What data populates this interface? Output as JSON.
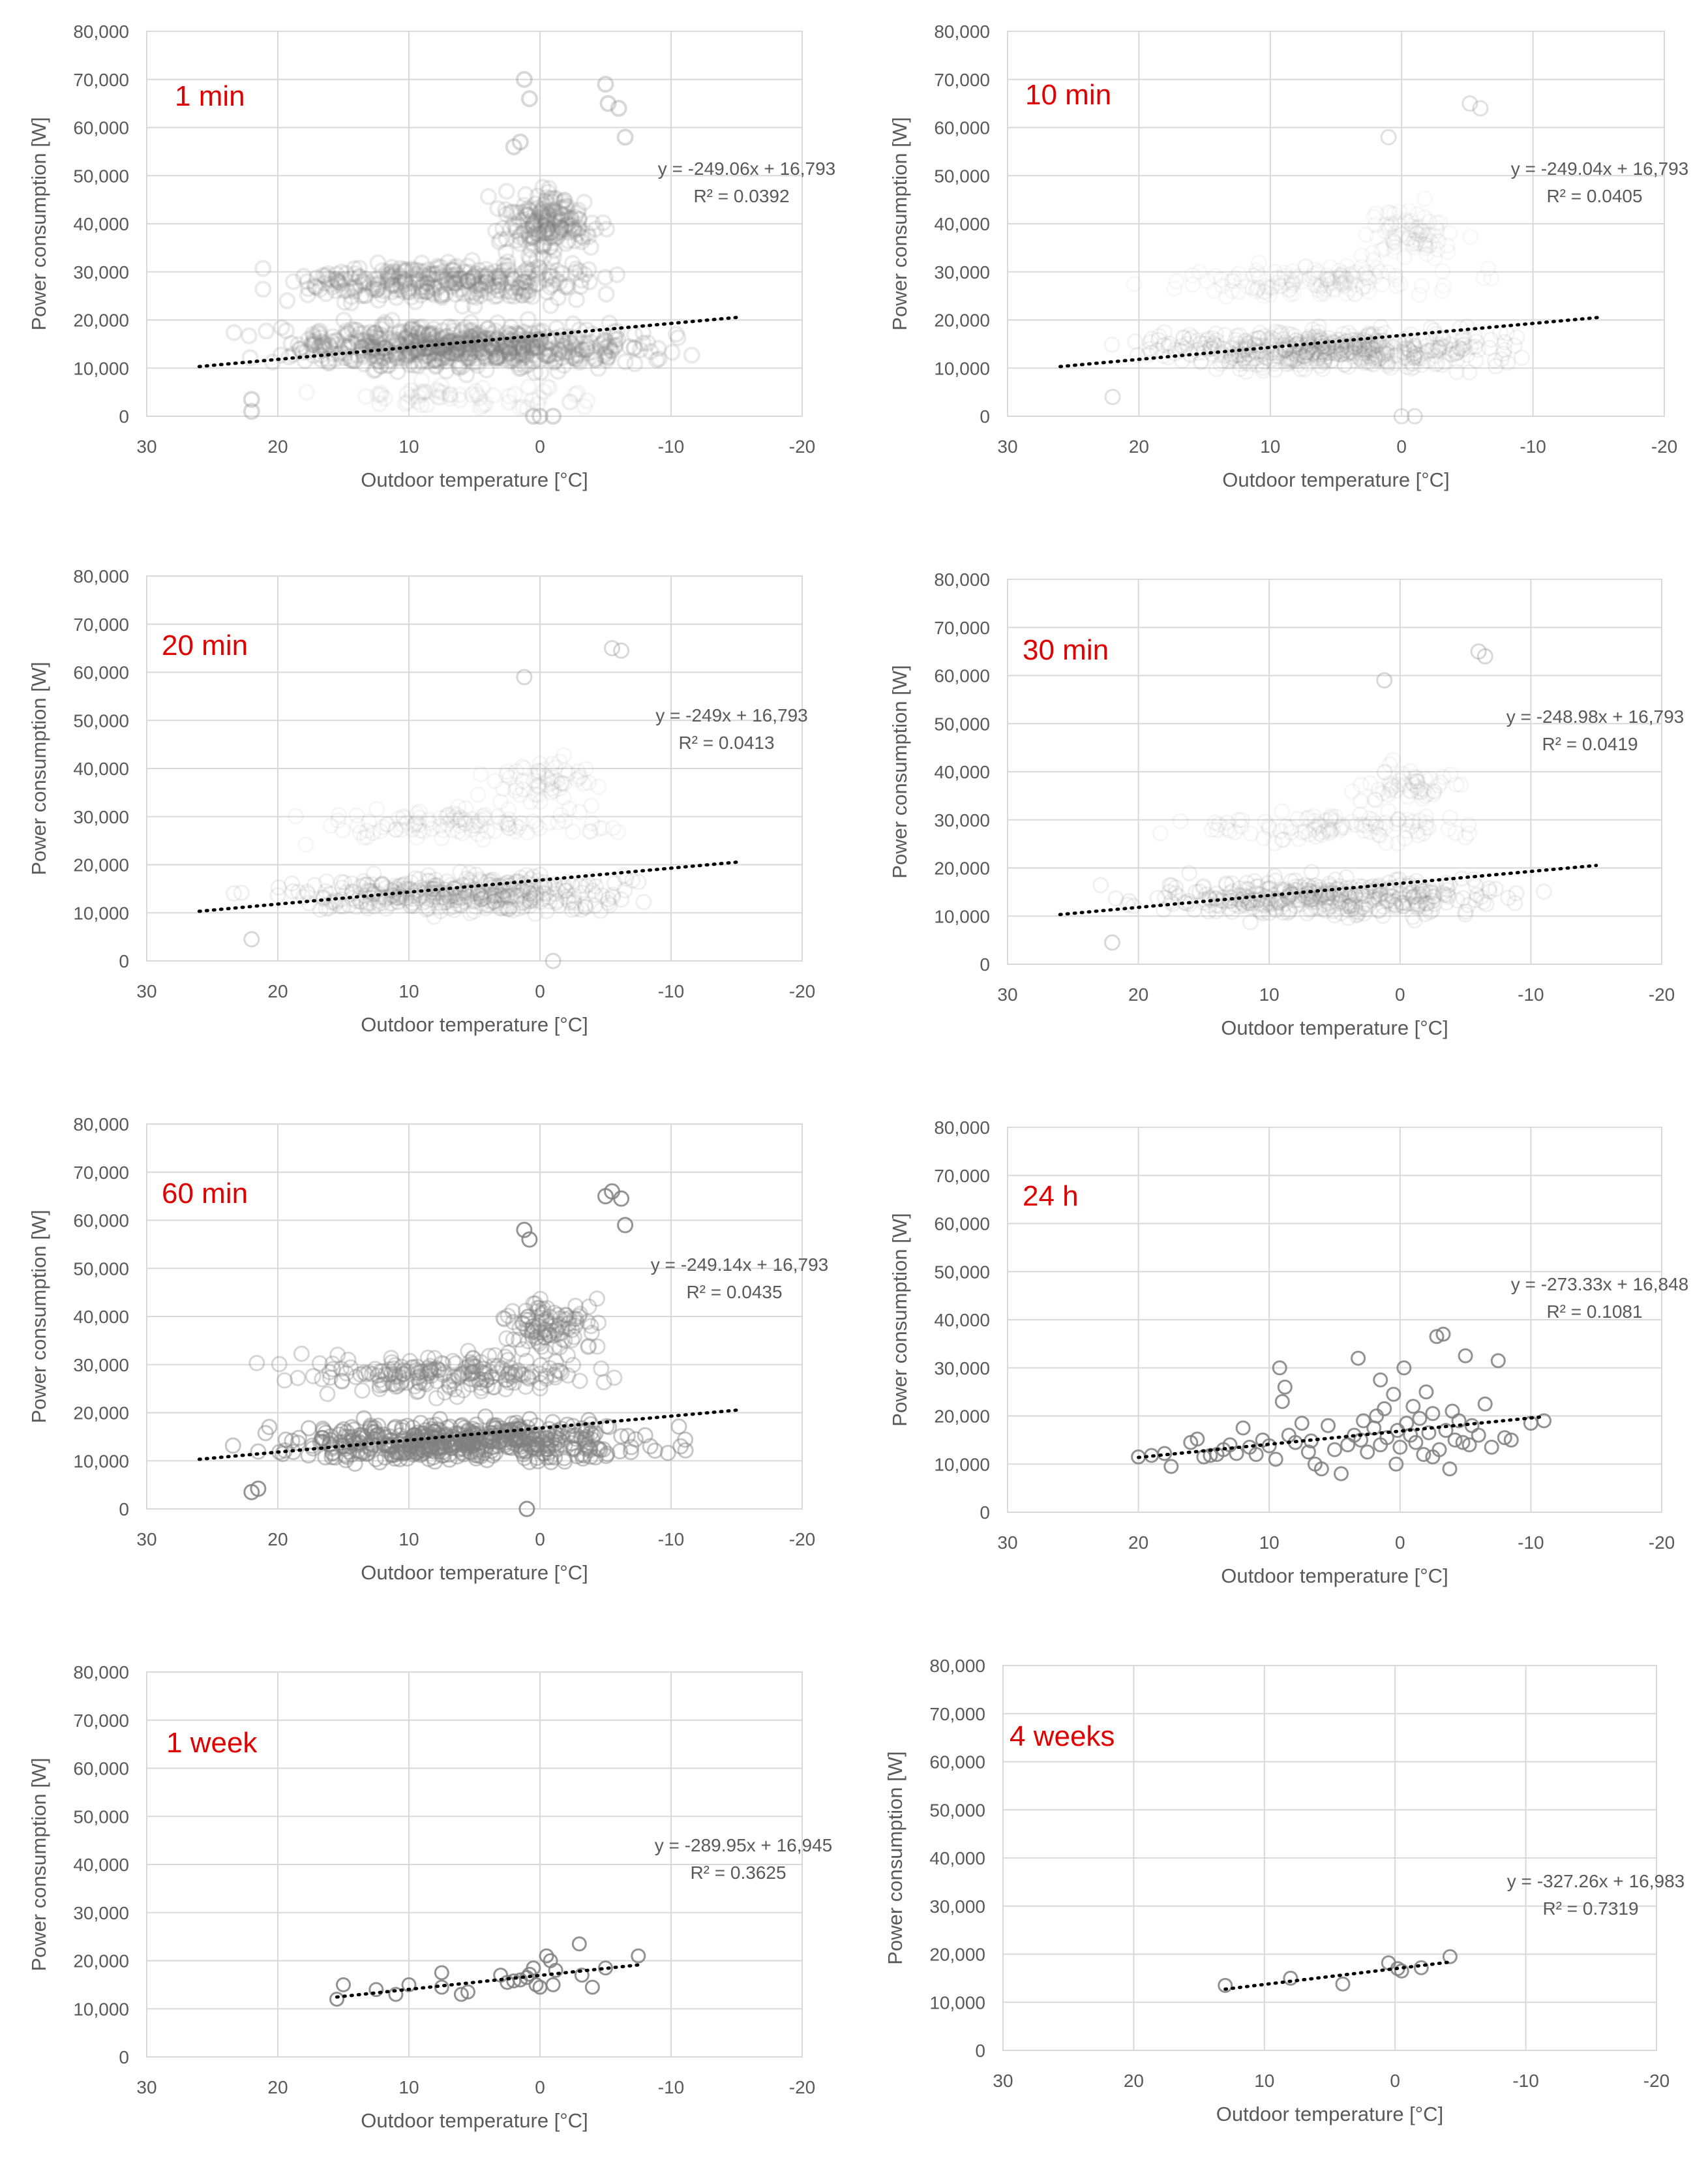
{
  "figure": {
    "title_color": "#e00000",
    "point_color": "#7f7f7f",
    "trend_color": "#000000"
  },
  "chart_data": [
    {
      "type": "scatter",
      "title": "1 min",
      "xlabel": "Outdoor temperature [°C]",
      "ylabel": "Power consumption [W]",
      "xlim": [
        30,
        -20
      ],
      "ylim": [
        0,
        80000
      ],
      "xticks": [
        "30",
        "20",
        "10",
        "0",
        "-10",
        "-20"
      ],
      "yticks": [
        "0",
        "10,000",
        "20,000",
        "30,000",
        "40,000",
        "50,000",
        "60,000",
        "70,000",
        "80,000"
      ],
      "equation": "y = -249.06x + 16,793",
      "r2": "R² = 0.0392",
      "trendline": {
        "slope": -249.06,
        "intercept": 16793,
        "x_range": [
          26,
          -15
        ]
      },
      "density": "very high",
      "clusters": [
        {
          "x_range": [
            26,
            -14
          ],
          "y_range": [
            8000,
            21000
          ],
          "n": 650,
          "weight": "heavy"
        },
        {
          "x_range": [
            25,
            -10
          ],
          "y_range": [
            22000,
            34000
          ],
          "n": 330,
          "weight": "heavy"
        },
        {
          "x_range": [
            5,
            -6
          ],
          "y_range": [
            30000,
            50000
          ],
          "n": 180,
          "weight": "heavy"
        },
        {
          "x_range": [
            22,
            -10
          ],
          "y_range": [
            0,
            8000
          ],
          "n": 60,
          "weight": "light"
        }
      ],
      "points": [
        [
          1.2,
          70000
        ],
        [
          0.8,
          66000
        ],
        [
          -5.2,
          65000
        ],
        [
          -6.0,
          64000
        ],
        [
          -6.5,
          58000
        ],
        [
          1.5,
          57000
        ],
        [
          2.0,
          56000
        ],
        [
          -5.0,
          69000
        ],
        [
          22,
          1000
        ],
        [
          22,
          3500
        ],
        [
          0,
          0
        ],
        [
          -1,
          0
        ],
        [
          0.5,
          0
        ]
      ]
    },
    {
      "type": "scatter",
      "title": "10 min",
      "xlabel": "Outdoor temperature [°C]",
      "ylabel": "Power consumption [W]",
      "xlim": [
        30,
        -20
      ],
      "ylim": [
        0,
        80000
      ],
      "xticks": [
        "30",
        "20",
        "10",
        "0",
        "-10",
        "-20"
      ],
      "yticks": [
        "0",
        "10,000",
        "20,000",
        "30,000",
        "40,000",
        "50,000",
        "60,000",
        "70,000",
        "80,000"
      ],
      "equation": "y = -249.04x + 16,793",
      "r2": "R² = 0.0405",
      "trendline": {
        "slope": -249.04,
        "intercept": 16793,
        "x_range": [
          26,
          -15
        ]
      },
      "density": "high",
      "clusters": [
        {
          "x_range": [
            26,
            -14
          ],
          "y_range": [
            8000,
            20000
          ],
          "n": 520,
          "weight": "medium"
        },
        {
          "x_range": [
            22,
            -10
          ],
          "y_range": [
            23000,
            33000
          ],
          "n": 140,
          "weight": "light"
        },
        {
          "x_range": [
            5,
            -6
          ],
          "y_range": [
            30000,
            46000
          ],
          "n": 80,
          "weight": "light"
        }
      ],
      "points": [
        [
          -5.2,
          65000
        ],
        [
          -6.0,
          64000
        ],
        [
          1.0,
          58000
        ],
        [
          22,
          4000
        ],
        [
          0,
          0
        ],
        [
          -1,
          0
        ]
      ]
    },
    {
      "type": "scatter",
      "title": "20 min",
      "xlabel": "Outdoor temperature [°C]",
      "ylabel": "Power consumption [W]",
      "xlim": [
        30,
        -20
      ],
      "ylim": [
        0,
        80000
      ],
      "xticks": [
        "30",
        "20",
        "10",
        "0",
        "-10",
        "-20"
      ],
      "yticks": [
        "0",
        "10,000",
        "20,000",
        "30,000",
        "40,000",
        "50,000",
        "60,000",
        "70,000",
        "80,000"
      ],
      "equation": "y = -249x + 16,793",
      "r2": "R² = 0.0413",
      "trendline": {
        "slope": -249.0,
        "intercept": 16793,
        "x_range": [
          26,
          -15
        ]
      },
      "density": "medium",
      "clusters": [
        {
          "x_range": [
            26,
            -14
          ],
          "y_range": [
            8000,
            20000
          ],
          "n": 420,
          "weight": "medium"
        },
        {
          "x_range": [
            22,
            -10
          ],
          "y_range": [
            24000,
            33000
          ],
          "n": 110,
          "weight": "light"
        },
        {
          "x_range": [
            5,
            -6
          ],
          "y_range": [
            30000,
            45000
          ],
          "n": 60,
          "weight": "light"
        }
      ],
      "points": [
        [
          -5.5,
          65000
        ],
        [
          -6.2,
          64500
        ],
        [
          1.2,
          59000
        ],
        [
          22,
          4500
        ],
        [
          -1,
          0
        ]
      ]
    },
    {
      "type": "scatter",
      "title": "30 min",
      "xlabel": "Outdoor temperature [°C]",
      "ylabel": "Power consumption [W]",
      "xlim": [
        30,
        -20
      ],
      "ylim": [
        0,
        80000
      ],
      "xticks": [
        "30",
        "20",
        "10",
        "0",
        "-10",
        "-20"
      ],
      "yticks": [
        "0",
        "10,000",
        "20,000",
        "30,000",
        "40,000",
        "50,000",
        "60,000",
        "70,000",
        "80,000"
      ],
      "equation": "y = -248.98x + 16,793",
      "r2": "R² = 0.0419",
      "trendline": {
        "slope": -248.98,
        "intercept": 16793,
        "x_range": [
          26,
          -15
        ]
      },
      "density": "medium",
      "clusters": [
        {
          "x_range": [
            26,
            -14
          ],
          "y_range": [
            8000,
            20000
          ],
          "n": 380,
          "weight": "medium"
        },
        {
          "x_range": [
            22,
            -10
          ],
          "y_range": [
            24000,
            33000
          ],
          "n": 100,
          "weight": "light"
        },
        {
          "x_range": [
            5,
            -6
          ],
          "y_range": [
            30000,
            45000
          ],
          "n": 55,
          "weight": "light"
        }
      ],
      "points": [
        [
          -6.0,
          65000
        ],
        [
          -6.5,
          64000
        ],
        [
          1.2,
          59000
        ],
        [
          22,
          4500
        ]
      ]
    },
    {
      "type": "scatter",
      "title": "60 min",
      "xlabel": "Outdoor temperature [°C]",
      "ylabel": "Power consumption [W]",
      "xlim": [
        30,
        -20
      ],
      "ylim": [
        0,
        80000
      ],
      "xticks": [
        "30",
        "20",
        "10",
        "0",
        "-10",
        "-20"
      ],
      "yticks": [
        "0",
        "10,000",
        "20,000",
        "30,000",
        "40,000",
        "50,000",
        "60,000",
        "70,000",
        "80,000"
      ],
      "equation": "y = -249.14x + 16,793",
      "r2": "R² = 0.0435",
      "trendline": {
        "slope": -249.14,
        "intercept": 16793,
        "x_range": [
          26,
          -15
        ]
      },
      "density": "medium-high",
      "clusters": [
        {
          "x_range": [
            26,
            -14
          ],
          "y_range": [
            8000,
            20000
          ],
          "n": 520,
          "weight": "heavy"
        },
        {
          "x_range": [
            24,
            -10
          ],
          "y_range": [
            22000,
            34000
          ],
          "n": 200,
          "weight": "medium"
        },
        {
          "x_range": [
            5,
            -6
          ],
          "y_range": [
            30000,
            46000
          ],
          "n": 100,
          "weight": "medium"
        }
      ],
      "points": [
        [
          -5.5,
          66000
        ],
        [
          -6.2,
          64500
        ],
        [
          -5.0,
          65000
        ],
        [
          -6.5,
          59000
        ],
        [
          1.2,
          58000
        ],
        [
          0.8,
          56000
        ],
        [
          22,
          3500
        ],
        [
          21.5,
          4200
        ],
        [
          1.0,
          0
        ]
      ]
    },
    {
      "type": "scatter",
      "title": "24 h",
      "xlabel": "Outdoor temperature [°C]",
      "ylabel": "Power consumption [W]",
      "xlim": [
        30,
        -20
      ],
      "ylim": [
        0,
        80000
      ],
      "xticks": [
        "30",
        "20",
        "10",
        "0",
        "-10",
        "-20"
      ],
      "yticks": [
        "0",
        "10,000",
        "20,000",
        "30,000",
        "40,000",
        "50,000",
        "60,000",
        "70,000",
        "80,000"
      ],
      "equation": "y = -273.33x + 16,848",
      "r2": "R² = 0.1081",
      "trendline": {
        "slope": -273.33,
        "intercept": 16848,
        "x_range": [
          20,
          -11
        ]
      },
      "density": "sparse",
      "points": [
        [
          20,
          11500
        ],
        [
          19,
          11800
        ],
        [
          18,
          12200
        ],
        [
          17.5,
          9500
        ],
        [
          16,
          14500
        ],
        [
          15.5,
          15200
        ],
        [
          15,
          11500
        ],
        [
          14.5,
          11800
        ],
        [
          14,
          12000
        ],
        [
          13.5,
          13000
        ],
        [
          13,
          14000
        ],
        [
          12.5,
          12200
        ],
        [
          12,
          17500
        ],
        [
          11.5,
          13500
        ],
        [
          11,
          12000
        ],
        [
          10.5,
          15000
        ],
        [
          10,
          13800
        ],
        [
          9.5,
          11000
        ],
        [
          9.2,
          30000
        ],
        [
          9,
          23000
        ],
        [
          8.8,
          26000
        ],
        [
          8.5,
          16000
        ],
        [
          8,
          14500
        ],
        [
          7.5,
          18500
        ],
        [
          7,
          12500
        ],
        [
          6.5,
          10000
        ],
        [
          6,
          9000
        ],
        [
          5.5,
          18000
        ],
        [
          5,
          13000
        ],
        [
          4.5,
          8000
        ],
        [
          4,
          14000
        ],
        [
          3.5,
          16000
        ],
        [
          3,
          15000
        ],
        [
          2.8,
          19000
        ],
        [
          2.5,
          12500
        ],
        [
          2,
          17500
        ],
        [
          1.8,
          20000
        ],
        [
          1.5,
          14000
        ],
        [
          1.2,
          21500
        ],
        [
          1,
          15500
        ],
        [
          0.5,
          24500
        ],
        [
          0.2,
          17000
        ],
        [
          0,
          13500
        ],
        [
          -0.3,
          30000
        ],
        [
          -0.5,
          18500
        ],
        [
          -0.8,
          16000
        ],
        [
          -1,
          22000
        ],
        [
          -1.2,
          14500
        ],
        [
          -1.5,
          19500
        ],
        [
          -1.8,
          12000
        ],
        [
          -2,
          25000
        ],
        [
          -2.2,
          16500
        ],
        [
          -2.5,
          20500
        ],
        [
          -2.8,
          36500
        ],
        [
          -3,
          13000
        ],
        [
          -3.3,
          37000
        ],
        [
          -3.5,
          17000
        ],
        [
          -3.8,
          9000
        ],
        [
          -4,
          21000
        ],
        [
          -4.2,
          15000
        ],
        [
          -4.5,
          19000
        ],
        [
          -5,
          32500
        ],
        [
          -5.3,
          14000
        ],
        [
          -5.5,
          18000
        ],
        [
          -6,
          16000
        ],
        [
          -6.5,
          22500
        ],
        [
          -7,
          13500
        ],
        [
          -7.5,
          31500
        ],
        [
          -8,
          15500
        ],
        [
          -8.5,
          15000
        ],
        [
          -10,
          18500
        ],
        [
          -11,
          19000
        ],
        [
          3.2,
          32000
        ],
        [
          1.5,
          27500
        ],
        [
          0.3,
          10000
        ],
        [
          -2.5,
          11500
        ],
        [
          -4.8,
          14500
        ],
        [
          6.8,
          14800
        ]
      ]
    },
    {
      "type": "scatter",
      "title": "1 week",
      "xlabel": "Outdoor temperature [°C]",
      "ylabel": "Power consumption [W]",
      "xlim": [
        30,
        -20
      ],
      "ylim": [
        0,
        80000
      ],
      "xticks": [
        "30",
        "20",
        "10",
        "0",
        "-10",
        "-20"
      ],
      "yticks": [
        "0",
        "10,000",
        "20,000",
        "30,000",
        "40,000",
        "50,000",
        "60,000",
        "70,000",
        "80,000"
      ],
      "equation": "y = -289.95x + 16,945",
      "r2": "R² = 0.3625",
      "trendline": {
        "slope": -289.95,
        "intercept": 16945,
        "x_range": [
          15.5,
          -7.5
        ]
      },
      "density": "sparse",
      "points": [
        [
          15.5,
          12000
        ],
        [
          15,
          15000
        ],
        [
          12.5,
          14000
        ],
        [
          11,
          13000
        ],
        [
          10,
          15000
        ],
        [
          7.5,
          17500
        ],
        [
          7.5,
          14500
        ],
        [
          6,
          13000
        ],
        [
          5.5,
          13500
        ],
        [
          3,
          17000
        ],
        [
          2.5,
          15500
        ],
        [
          1.5,
          16000
        ],
        [
          1,
          16500
        ],
        [
          0.5,
          18500
        ],
        [
          0.3,
          15000
        ],
        [
          0,
          14500
        ],
        [
          -0.5,
          21000
        ],
        [
          -0.8,
          20000
        ],
        [
          -1,
          15000
        ],
        [
          -1.2,
          18000
        ],
        [
          -3,
          23500
        ],
        [
          -3.2,
          17000
        ],
        [
          -4,
          14500
        ],
        [
          -5,
          18500
        ],
        [
          -7.5,
          21000
        ],
        [
          2,
          15800
        ],
        [
          0.8,
          17200
        ]
      ]
    },
    {
      "type": "scatter",
      "title": "4 weeks",
      "xlabel": "Outdoor temperature [°C]",
      "ylabel": "Power consumption [W]",
      "xlim": [
        30,
        -20
      ],
      "ylim": [
        0,
        80000
      ],
      "xticks": [
        "30",
        "20",
        "10",
        "0",
        "-10",
        "-20"
      ],
      "yticks": [
        "0",
        "10,000",
        "20,000",
        "30,000",
        "40,000",
        "50,000",
        "60,000",
        "70,000",
        "80,000"
      ],
      "equation": "y = -327.26x + 16,983",
      "r2": "R² = 0.7319",
      "trendline": {
        "slope": -327.26,
        "intercept": 16983,
        "x_range": [
          13,
          -4.3
        ]
      },
      "density": "sparse",
      "points": [
        [
          13,
          13500
        ],
        [
          8,
          15000
        ],
        [
          4,
          13800
        ],
        [
          0.5,
          18200
        ],
        [
          -0.2,
          17000
        ],
        [
          -0.5,
          16500
        ],
        [
          -2,
          17200
        ],
        [
          -4.2,
          19500
        ]
      ]
    }
  ]
}
